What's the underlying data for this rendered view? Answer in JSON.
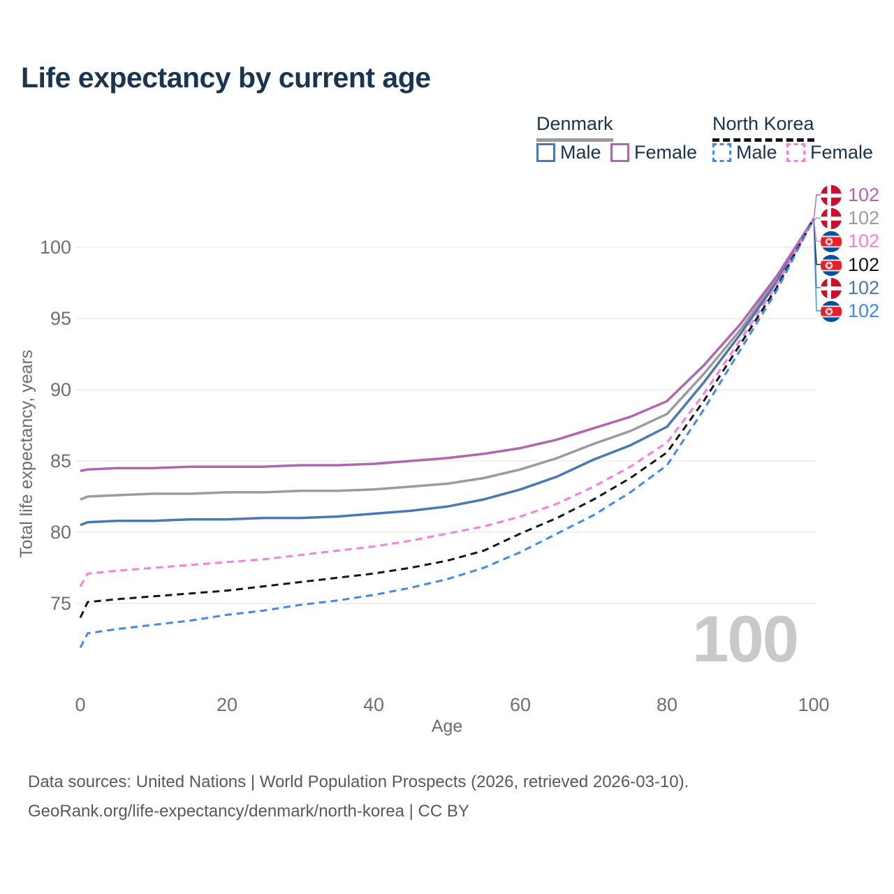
{
  "page": {
    "title": "Life expectancy by current age",
    "watermark_age": "100"
  },
  "legend": {
    "groups": [
      {
        "label": "Denmark",
        "line_style": "solid",
        "line_color": "#9b9b9b",
        "items": [
          {
            "label": "Male",
            "color": "#4a77b5",
            "dashed": false
          },
          {
            "label": "Female",
            "color": "#b066ae",
            "dashed": false
          }
        ]
      },
      {
        "label": "North Korea",
        "line_style": "dashed",
        "line_color": "#151515",
        "items": [
          {
            "label": "Male",
            "color": "#3f87f5",
            "dashed": true
          },
          {
            "label": "Female",
            "color": "#fb7ce0",
            "dashed": true
          }
        ]
      }
    ]
  },
  "chart_data": {
    "type": "line",
    "title": "Life expectancy by current age",
    "xlabel": "Age",
    "ylabel": "Total life expectancy, years",
    "xlim": [
      0,
      100
    ],
    "ylim": [
      71.5,
      103.5
    ],
    "xticks": [
      0,
      20,
      40,
      60,
      80,
      100
    ],
    "yticks": [
      75,
      80,
      85,
      90,
      95,
      100
    ],
    "grid": "horizontal-only",
    "legend_position": "top-right",
    "x": [
      0,
      1,
      5,
      10,
      15,
      20,
      25,
      30,
      35,
      40,
      45,
      50,
      55,
      60,
      65,
      70,
      75,
      80,
      85,
      90,
      95,
      100
    ],
    "series": [
      {
        "name": "Denmark Both sexes",
        "color": "#9b9b9b",
        "dashed": false,
        "flag": "denmark",
        "values": [
          82.3,
          82.5,
          82.6,
          82.7,
          82.7,
          82.8,
          82.8,
          82.9,
          82.9,
          83.0,
          83.2,
          83.4,
          83.8,
          84.4,
          85.2,
          86.2,
          87.1,
          88.3,
          91.1,
          94.2,
          97.8,
          102
        ]
      },
      {
        "name": "Denmark Male",
        "color": "#4a77b5",
        "dashed": false,
        "flag": "denmark",
        "values": [
          80.5,
          80.7,
          80.8,
          80.8,
          80.9,
          80.9,
          81.0,
          81.0,
          81.1,
          81.3,
          81.5,
          81.8,
          82.3,
          83.0,
          83.9,
          85.1,
          86.1,
          87.4,
          90.5,
          93.9,
          97.6,
          102
        ]
      },
      {
        "name": "Denmark Female",
        "color": "#b066ae",
        "dashed": false,
        "flag": "denmark",
        "values": [
          84.3,
          84.4,
          84.5,
          84.5,
          84.6,
          84.6,
          84.6,
          84.7,
          84.7,
          84.8,
          85.0,
          85.2,
          85.5,
          85.9,
          86.5,
          87.3,
          88.1,
          89.2,
          91.7,
          94.6,
          98.0,
          102
        ]
      },
      {
        "name": "North Korea Female",
        "color": "#fb7ce0",
        "dashed": true,
        "flag": "north-korea",
        "values": [
          76.2,
          77.1,
          77.3,
          77.5,
          77.7,
          77.9,
          78.1,
          78.4,
          78.7,
          79.0,
          79.4,
          79.9,
          80.4,
          81.1,
          82.0,
          83.2,
          84.6,
          86.3,
          89.7,
          93.5,
          97.4,
          102
        ]
      },
      {
        "name": "North Korea Both sexes",
        "color": "#151515",
        "dashed": true,
        "flag": "north-korea",
        "values": [
          74.0,
          75.1,
          75.3,
          75.5,
          75.7,
          75.9,
          76.2,
          76.5,
          76.8,
          77.1,
          77.5,
          78.0,
          78.7,
          79.9,
          81.0,
          82.3,
          83.8,
          85.6,
          89.2,
          93.2,
          97.2,
          102
        ]
      },
      {
        "name": "North Korea Male",
        "color": "#3f87f5",
        "dashed": true,
        "flag": "north-korea",
        "values": [
          71.9,
          72.9,
          73.2,
          73.5,
          73.8,
          74.2,
          74.5,
          74.9,
          75.2,
          75.6,
          76.1,
          76.7,
          77.5,
          78.6,
          79.9,
          81.2,
          82.8,
          84.7,
          88.6,
          92.8,
          97.0,
          102
        ]
      }
    ],
    "end_labels": [
      {
        "series": "Denmark Female",
        "value": "102",
        "flag": "denmark",
        "color": "#b066ae"
      },
      {
        "series": "Denmark Both sexes",
        "value": "102",
        "flag": "denmark",
        "color": "#9b9b9b"
      },
      {
        "series": "North Korea Female",
        "value": "102",
        "flag": "north-korea",
        "color": "#fb7ce0"
      },
      {
        "series": "North Korea Both sexes",
        "value": "102",
        "flag": "north-korea",
        "color": "#151515"
      },
      {
        "series": "Denmark Male",
        "value": "102",
        "flag": "denmark",
        "color": "#4a77b5"
      },
      {
        "series": "North Korea Male",
        "value": "102",
        "flag": "north-korea",
        "color": "#3f87f5"
      }
    ]
  },
  "footer": {
    "line1": "Data sources: United Nations | World Population Prospects (2026, retrieved 2026-03-10).",
    "line2": "GeoRank.org/life-expectancy/denmark/north-korea | CC BY"
  }
}
